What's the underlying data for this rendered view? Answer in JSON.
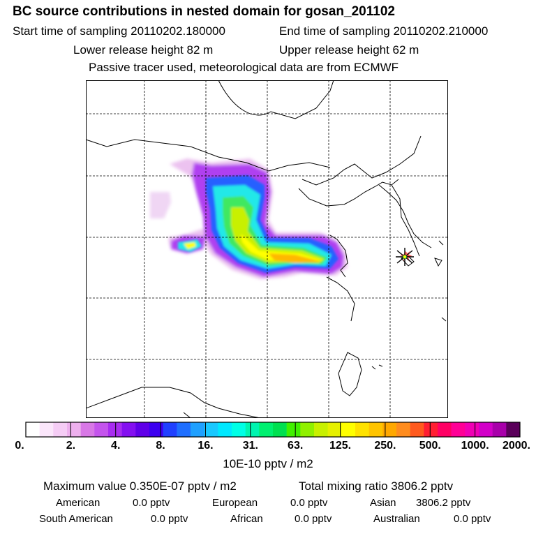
{
  "header": {
    "title": "BC  source contributions in nested domain for gosan_201102",
    "start_time": "Start time of sampling 20110202.180000",
    "end_time": "End time of sampling 20110202.210000",
    "lower_height": "Lower release height   82 m",
    "upper_height": "Upper release height   62 m",
    "tracer_note": "Passive tracer used, meteorological data are from ECMWF"
  },
  "colorbar": {
    "tick_labels": [
      "0.",
      "2.",
      "4.",
      "8.",
      "16.",
      "31.",
      "63.",
      "125.",
      "250.",
      "500.",
      "1000.",
      "2000."
    ],
    "colors": [
      "#ffffff",
      "#fbe6fb",
      "#f5ccf5",
      "#eeb0ee",
      "#d878e6",
      "#c454ec",
      "#a82cf0",
      "#8410f0",
      "#6000e8",
      "#3c00f0",
      "#2040ff",
      "#1f6fff",
      "#1fa0ff",
      "#19c8ff",
      "#00e8ff",
      "#00ffe6",
      "#00f5b0",
      "#00f070",
      "#00e050",
      "#40f000",
      "#90f000",
      "#c8f000",
      "#e6f000",
      "#ffff00",
      "#ffe200",
      "#ffc400",
      "#ffa800",
      "#ff8c1e",
      "#ff5a1e",
      "#ff1e32",
      "#ff0064",
      "#ff0096",
      "#f000b4",
      "#d200c8",
      "#a800aa",
      "#5a005a"
    ],
    "unit": "10E-10 pptv / m2"
  },
  "stats": {
    "max_value": "Maximum value  0.350E-07 pptv / m2",
    "total_mixing": "Total mixing ratio     3806.2 pptv",
    "american_label": "American",
    "american_value": "0.0 pptv",
    "european_label": "European",
    "european_value": "0.0 pptv",
    "asian_label": "Asian",
    "asian_value": "3806.2 pptv",
    "south_american_label": "South American",
    "south_american_value": "0.0 pptv",
    "african_label": "African",
    "african_value": "0.0 pptv",
    "australian_label": "Australian",
    "australian_value": "0.0 pptv"
  },
  "map": {
    "receptor_marker": "station-star-icon",
    "plume_colors": {
      "outer": "#ecc2f0",
      "violet": "#b040f0",
      "blue": "#2860ff",
      "cyan": "#20e8e8",
      "green": "#40e860",
      "lime": "#c8f000",
      "yellow": "#ffff00",
      "orange": "#ffb800"
    }
  }
}
